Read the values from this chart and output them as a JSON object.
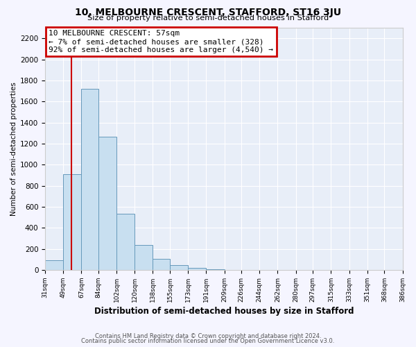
{
  "title": "10, MELBOURNE CRESCENT, STAFFORD, ST16 3JU",
  "subtitle": "Size of property relative to semi-detached houses in Stafford",
  "xlabel": "Distribution of semi-detached houses by size in Stafford",
  "ylabel": "Number of semi-detached properties",
  "bar_color": "#c8dff0",
  "bar_edge_color": "#6699bb",
  "background_color": "#e8eef8",
  "grid_color": "#ffffff",
  "property_line_x": 57,
  "property_line_color": "#cc0000",
  "annotation_title": "10 MELBOURNE CRESCENT: 57sqm",
  "annotation_line1": "← 7% of semi-detached houses are smaller (328)",
  "annotation_line2": "92% of semi-detached houses are larger (4,540) →",
  "annotation_box_color": "#cc0000",
  "bins": [
    31,
    49,
    67,
    84,
    102,
    120,
    138,
    155,
    173,
    191,
    209,
    226,
    244,
    262,
    280,
    297,
    315,
    333,
    351,
    368,
    386
  ],
  "counts": [
    90,
    910,
    1720,
    1265,
    535,
    235,
    105,
    45,
    20,
    5,
    0,
    0,
    0,
    0,
    0,
    0,
    0,
    0,
    0,
    0
  ],
  "ylim": [
    0,
    2300
  ],
  "yticks": [
    0,
    200,
    400,
    600,
    800,
    1000,
    1200,
    1400,
    1600,
    1800,
    2000,
    2200
  ],
  "footer_line1": "Contains HM Land Registry data © Crown copyright and database right 2024.",
  "footer_line2": "Contains public sector information licensed under the Open Government Licence v3.0."
}
